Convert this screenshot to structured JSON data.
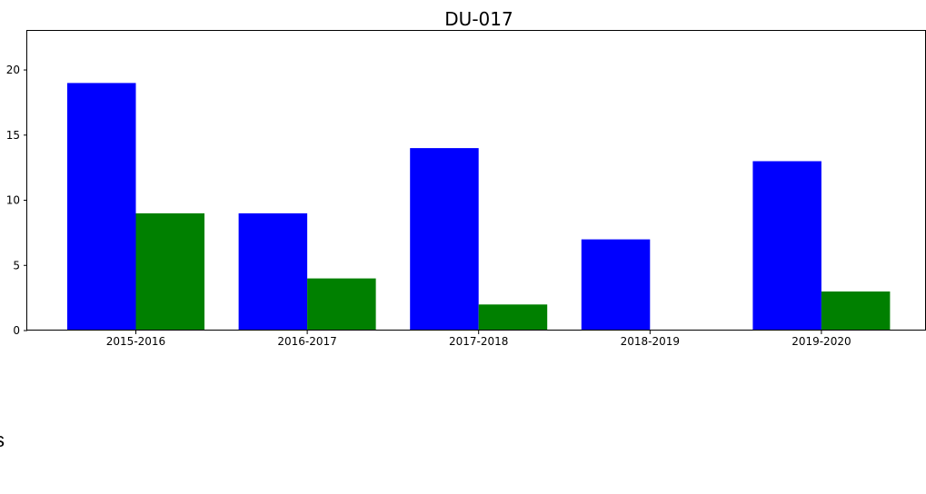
{
  "chart_data": {
    "type": "bar",
    "title": "DU-017",
    "xlabel": "",
    "ylabel": "",
    "categories": [
      "2015-2016",
      "2016-2017",
      "2017-2018",
      "2018-2019",
      "2019-2020"
    ],
    "series": [
      {
        "color": "#0000ff",
        "values": [
          19,
          9,
          14,
          7,
          13
        ]
      },
      {
        "color": "#008000",
        "values": [
          9,
          4,
          2,
          0,
          3
        ]
      }
    ],
    "ylim": [
      0,
      23
    ],
    "yticks": [
      0,
      5,
      10,
      15,
      20
    ],
    "grid": false,
    "legend": "none"
  },
  "stray_text": "s"
}
